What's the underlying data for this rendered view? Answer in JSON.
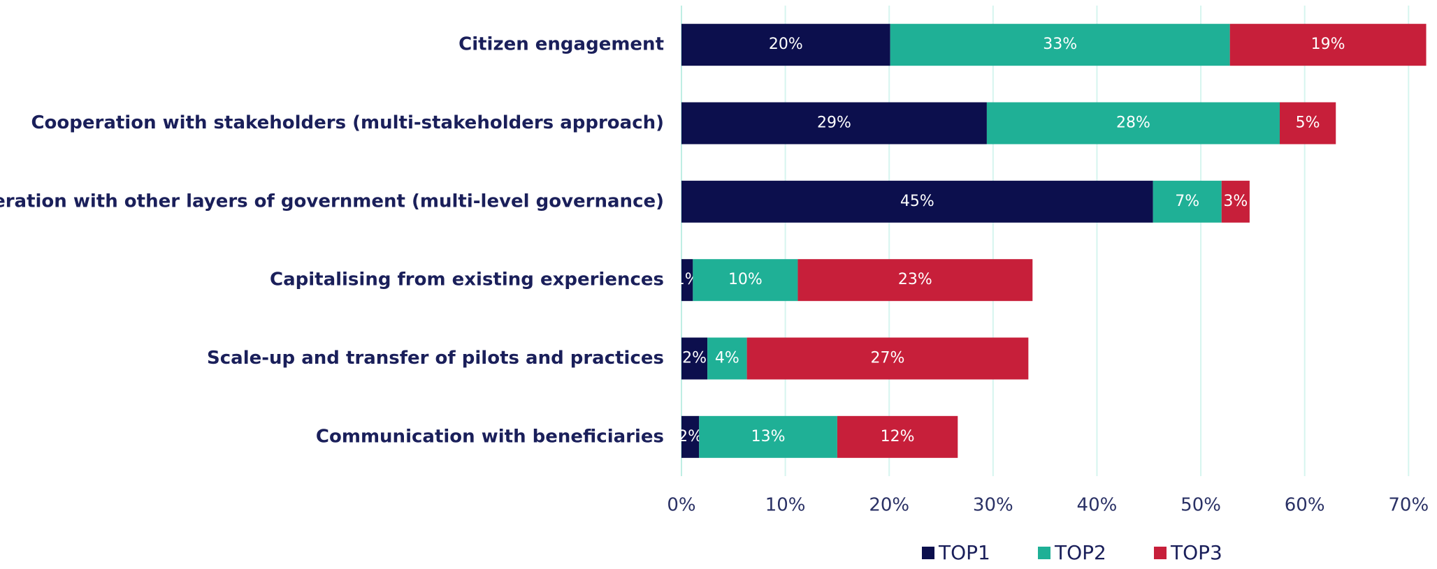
{
  "chart_data": {
    "type": "stacked_barh",
    "categories": [
      "Citizen engagement",
      "Cooperation with stakeholders (multi-stakeholders approach)",
      "Cooperation with other layers of government (multi-level governance)",
      "Capitalising from existing experiences",
      "Scale-up and transfer of pilots and practices",
      "Communication with beneficiaries"
    ],
    "series": [
      {
        "name": "TOP1",
        "color": "#0c0f4d",
        "values": [
          20.1,
          29.4,
          45.4,
          1.1,
          2.5,
          1.7
        ],
        "value_labels": [
          "20%",
          "29%",
          "45%",
          "1%",
          "2%",
          "2%"
        ]
      },
      {
        "name": "TOP2",
        "color": "#1fb096",
        "values": [
          32.7,
          28.2,
          6.6,
          10.1,
          3.8,
          13.3
        ],
        "value_labels": [
          "33%",
          "28%",
          "7%",
          "10%",
          "4%",
          "13%"
        ]
      },
      {
        "name": "TOP3",
        "color": "#c71f3a",
        "values": [
          18.9,
          5.4,
          2.7,
          22.6,
          27.1,
          11.6
        ],
        "value_labels": [
          "19%",
          "5%",
          "3%",
          "23%",
          "27%",
          "12%"
        ]
      }
    ],
    "xlim": [
      0,
      72
    ],
    "xticks": [
      {
        "value": 0,
        "label": "0%"
      },
      {
        "value": 10,
        "label": "10%"
      },
      {
        "value": 20,
        "label": "20%"
      },
      {
        "value": 30,
        "label": "30%"
      },
      {
        "value": 40,
        "label": "40%"
      },
      {
        "value": 50,
        "label": "50%"
      },
      {
        "value": 60,
        "label": "60%"
      },
      {
        "value": 70,
        "label": "70%"
      }
    ],
    "grid": true,
    "legend": "bottom"
  }
}
